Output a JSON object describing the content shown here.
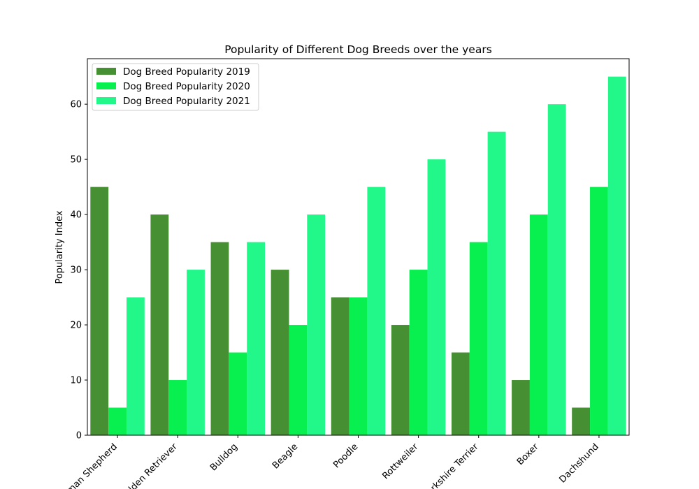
{
  "chart_data": {
    "type": "bar",
    "title": "Popularity of Different Dog Breeds over the years",
    "xlabel": "",
    "ylabel": "Popularity Index",
    "categories": [
      "German Shepherd",
      "Golden Retriever",
      "Bulldog",
      "Beagle",
      "Poodle",
      "Rottweiler",
      "Yorkshire Terrier",
      "Boxer",
      "Dachshund"
    ],
    "series": [
      {
        "name": "Dog Breed Popularity 2019",
        "color": "#478f33",
        "values": [
          45,
          40,
          35,
          30,
          25,
          20,
          15,
          10,
          5
        ]
      },
      {
        "name": "Dog Breed Popularity 2020",
        "color": "#08f050",
        "values": [
          5,
          10,
          15,
          20,
          25,
          30,
          35,
          40,
          45
        ]
      },
      {
        "name": "Dog Breed Popularity 2021",
        "color": "#22f889",
        "values": [
          25,
          30,
          35,
          40,
          45,
          50,
          55,
          60,
          65
        ]
      }
    ],
    "ylim": [
      0,
      68.25
    ],
    "yticks": [
      0,
      10,
      20,
      30,
      40,
      50,
      60
    ],
    "grid": false,
    "legend": "top-left"
  }
}
